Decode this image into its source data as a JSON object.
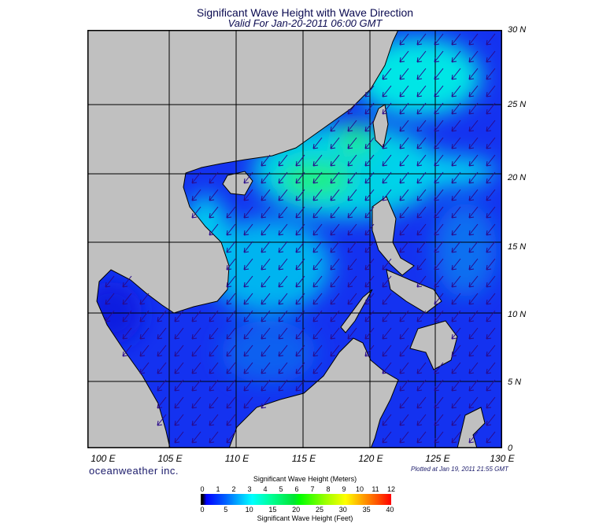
{
  "title": "Significant Wave Height with Wave Direction",
  "subtitle": "Valid For Jan-20-2011 06:00 GMT",
  "map": {
    "lon_labels": [
      "100 E",
      "105 E",
      "110 E",
      "115 E",
      "120 E",
      "125 E",
      "130 E"
    ],
    "lat_labels": [
      "30 N",
      "25 N",
      "20 N",
      "15 N",
      "10 N",
      "5 N",
      "0"
    ],
    "land_color": "#c0c0c0",
    "arrow_color": "#2a0a8a",
    "wave_direction": "southwest"
  },
  "brand": "oceanweather inc.",
  "plotted": "Plotted at Jan 19, 2011 21:55 GMT",
  "colorbar": {
    "title_meters": "Significant Wave Height (Meters)",
    "title_feet": "Significant Wave Height (Feet)",
    "meters_ticks": [
      "0",
      "1",
      "2",
      "3",
      "4",
      "5",
      "6",
      "7",
      "8",
      "9",
      "10",
      "11",
      "12"
    ],
    "feet_ticks": [
      "0",
      "5",
      "10",
      "15",
      "20",
      "25",
      "30",
      "35",
      "40"
    ]
  }
}
